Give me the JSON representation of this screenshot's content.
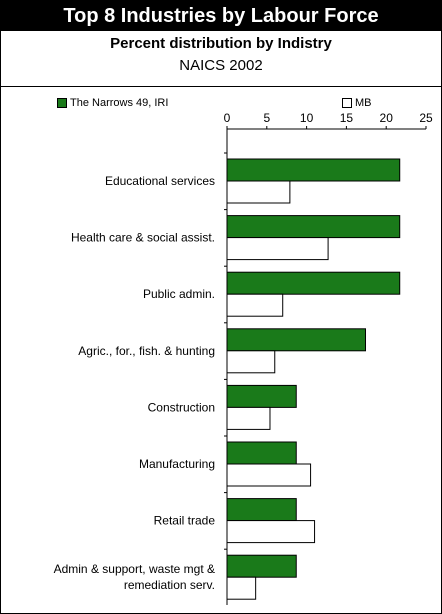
{
  "header": {
    "title": "Top 8 Industries by Labour Force",
    "subtitle": "Percent distribution by Indistry",
    "subtitle2": "NAICS 2002"
  },
  "colors": {
    "series1": "#1a7a1a",
    "series2": "#ffffff",
    "outline": "#000000"
  },
  "chart_data": {
    "type": "bar",
    "orientation": "horizontal",
    "xlim": [
      0,
      25
    ],
    "xticks": [
      0,
      5,
      10,
      15,
      20,
      25
    ],
    "legend_position": "top",
    "categories": [
      [
        "Educational services"
      ],
      [
        "Health care & social assist."
      ],
      [
        "Public admin."
      ],
      [
        "Agric., for., fish. & hunting"
      ],
      [
        "Construction"
      ],
      [
        "Manufacturing"
      ],
      [
        "Retail trade"
      ],
      [
        "Admin & support, waste mgt &",
        "remediation serv."
      ]
    ],
    "series": [
      {
        "name": "The Narrows 49, IRI",
        "values": [
          21.7,
          21.7,
          21.7,
          17.4,
          8.7,
          8.7,
          8.7,
          8.7
        ]
      },
      {
        "name": "MB",
        "values": [
          7.9,
          12.7,
          7.0,
          6.0,
          5.4,
          10.5,
          11.0,
          3.6
        ]
      }
    ]
  }
}
